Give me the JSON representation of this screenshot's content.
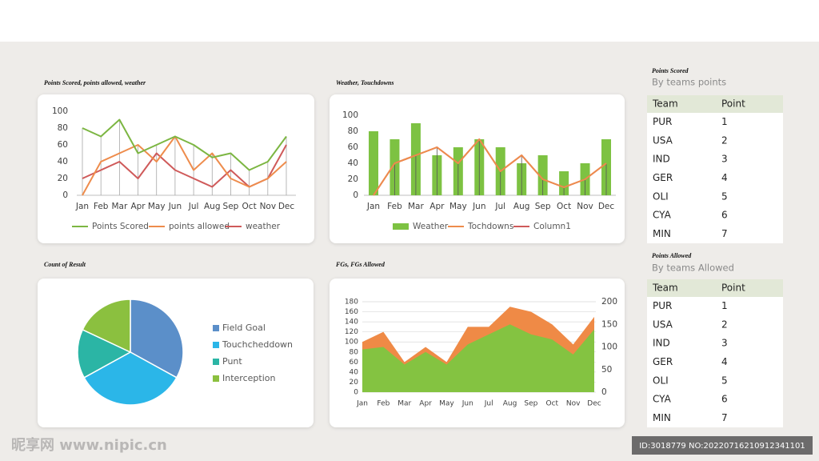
{
  "chart_data": [
    {
      "type": "line",
      "title": "Points Scored, points allowed, weather",
      "categories": [
        "Jan",
        "Feb",
        "Mar",
        "Apr",
        "May",
        "Jun",
        "Jul",
        "Aug",
        "Sep",
        "Oct",
        "Nov",
        "Dec"
      ],
      "ylim": [
        0,
        100
      ],
      "yticks": [
        0,
        20,
        40,
        60,
        80,
        100
      ],
      "series": [
        {
          "name": "Points Scored",
          "color": "#7cb642",
          "values": [
            80,
            70,
            90,
            50,
            60,
            70,
            60,
            45,
            50,
            30,
            40,
            70
          ]
        },
        {
          "name": "points allowed",
          "color": "#ee8c4c",
          "values": [
            0,
            40,
            50,
            60,
            40,
            70,
            30,
            50,
            20,
            10,
            20,
            40
          ]
        },
        {
          "name": "weather",
          "color": "#cf5a5a",
          "values": [
            20,
            30,
            40,
            20,
            50,
            30,
            20,
            10,
            30,
            10,
            20,
            60
          ]
        }
      ]
    },
    {
      "type": "combo",
      "title": "Weather, Touchdowns",
      "categories": [
        "Jan",
        "Feb",
        "Mar",
        "Apr",
        "May",
        "Jun",
        "Jul",
        "Aug",
        "Sep",
        "Oct",
        "Nov",
        "Dec"
      ],
      "ylim": [
        0,
        100
      ],
      "yticks": [
        0,
        20,
        40,
        60,
        80,
        100
      ],
      "series": [
        {
          "name": "Weather",
          "type": "bar",
          "color": "#7dc242",
          "values": [
            80,
            70,
            90,
            50,
            60,
            70,
            60,
            40,
            50,
            30,
            40,
            70
          ]
        },
        {
          "name": "Tochdowns",
          "type": "line",
          "color": "#ee8c4c",
          "values": [
            0,
            40,
            50,
            60,
            40,
            70,
            30,
            50,
            20,
            10,
            20,
            40
          ]
        },
        {
          "name": "Column1",
          "type": "line",
          "color": "#cf5a5a",
          "values": [
            0,
            40,
            50,
            60,
            40,
            70,
            30,
            50,
            20,
            10,
            20,
            40
          ]
        }
      ]
    },
    {
      "type": "pie",
      "title": "Count of Result",
      "categories": [
        "Field Goal",
        "Touchcheddown",
        "Punt",
        "Interception"
      ],
      "values": [
        33,
        34,
        15,
        18
      ],
      "colors": [
        "#5b8fc9",
        "#2bb6e8",
        "#2bb5a5",
        "#8bc03f"
      ]
    },
    {
      "type": "area",
      "title": "FGs, FGs Allowed",
      "categories": [
        "Jan",
        "Feb",
        "Mar",
        "Apr",
        "May",
        "Jun",
        "Jul",
        "Aug",
        "Sep",
        "Oct",
        "Nov",
        "Dec"
      ],
      "ylim": [
        0,
        180
      ],
      "yticks": [
        0,
        20,
        40,
        60,
        80,
        100,
        120,
        140,
        160,
        180
      ],
      "y2lim": [
        0,
        200
      ],
      "y2ticks": [
        0,
        50,
        100,
        150,
        200
      ],
      "grid": true,
      "series": [
        {
          "color": "#ef8a46",
          "values": [
            100,
            120,
            60,
            90,
            60,
            130,
            130,
            170,
            160,
            135,
            95,
            150
          ]
        },
        {
          "color": "#84c341",
          "values": [
            85,
            90,
            55,
            80,
            55,
            95,
            115,
            135,
            115,
            105,
            75,
            125
          ]
        }
      ]
    }
  ],
  "tables": [
    {
      "title": "Points Scored",
      "subtitle": "By teams points",
      "header": [
        "Team",
        "Point"
      ],
      "rows": [
        [
          "PUR",
          "1"
        ],
        [
          "USA",
          "2"
        ],
        [
          "IND",
          "3"
        ],
        [
          "GER",
          "4"
        ],
        [
          "OLI",
          "5"
        ],
        [
          "CYA",
          "6"
        ],
        [
          "MIN",
          "7"
        ]
      ]
    },
    {
      "title": "Points Allowed",
      "subtitle": "By teams Allowed",
      "header": [
        "Team",
        "Point"
      ],
      "rows": [
        [
          "PUR",
          "1"
        ],
        [
          "USA",
          "2"
        ],
        [
          "IND",
          "3"
        ],
        [
          "GER",
          "4"
        ],
        [
          "OLI",
          "5"
        ],
        [
          "CYA",
          "6"
        ],
        [
          "MIN",
          "7"
        ]
      ]
    }
  ],
  "watermark": {
    "site": "昵享网 www.nipic.cn",
    "id": "ID:3018779 NO:20220716210912341101"
  }
}
